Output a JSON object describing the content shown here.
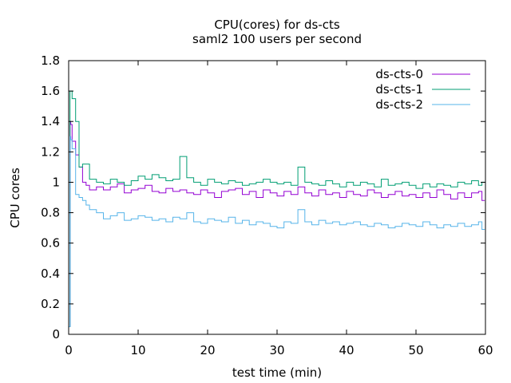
{
  "chart_data": {
    "type": "line",
    "title": "CPU(cores) for ds-cts",
    "subtitle": "saml2 100 users per second",
    "xlabel": "test time (min)",
    "ylabel": "CPU cores",
    "xlim": [
      0,
      60
    ],
    "ylim": [
      0,
      1.8
    ],
    "xticks": [
      0,
      10,
      20,
      30,
      40,
      50,
      60
    ],
    "yticks": [
      0,
      0.2,
      0.4,
      0.6,
      0.8,
      1,
      1.2,
      1.4,
      1.6,
      1.8
    ],
    "xtick_labels": [
      "0",
      "10",
      "20",
      "30",
      "40",
      "50",
      "60"
    ],
    "ytick_labels": [
      "0",
      "0.2",
      "0.4",
      "0.6",
      "0.8",
      "1",
      "1.2",
      "1.4",
      "1.6",
      "1.8"
    ],
    "grid": false,
    "legend_position": "top-right",
    "series": [
      {
        "name": "ds-cts-0",
        "color": "#9400d3",
        "x": [
          0,
          0.2,
          0.3,
          0.5,
          1,
          1.5,
          2,
          2.5,
          3,
          4,
          5,
          6,
          7,
          8,
          9,
          10,
          11,
          12,
          13,
          14,
          15,
          16,
          17,
          18,
          19,
          20,
          21,
          22,
          23,
          24,
          25,
          26,
          27,
          28,
          29,
          30,
          31,
          32,
          33,
          34,
          35,
          36,
          37,
          38,
          39,
          40,
          41,
          42,
          43,
          44,
          45,
          46,
          47,
          48,
          49,
          50,
          51,
          52,
          53,
          54,
          55,
          56,
          57,
          58,
          59,
          59.5
        ],
        "y": [
          0.05,
          1.4,
          1.38,
          1.27,
          1.18,
          1.1,
          1.0,
          0.98,
          0.95,
          0.97,
          0.95,
          0.97,
          0.99,
          0.93,
          0.95,
          0.96,
          0.98,
          0.94,
          0.93,
          0.96,
          0.94,
          0.95,
          0.93,
          0.92,
          0.95,
          0.93,
          0.9,
          0.94,
          0.95,
          0.96,
          0.92,
          0.94,
          0.9,
          0.95,
          0.93,
          0.91,
          0.94,
          0.92,
          0.97,
          0.93,
          0.91,
          0.95,
          0.92,
          0.93,
          0.9,
          0.94,
          0.92,
          0.91,
          0.95,
          0.93,
          0.9,
          0.92,
          0.94,
          0.91,
          0.92,
          0.9,
          0.93,
          0.9,
          0.95,
          0.92,
          0.89,
          0.93,
          0.9,
          0.93,
          0.94,
          0.88
        ]
      },
      {
        "name": "ds-cts-1",
        "color": "#009e73",
        "x": [
          0,
          0.2,
          0.3,
          0.5,
          1,
          1.5,
          2,
          2.5,
          3,
          4,
          5,
          6,
          7,
          8,
          9,
          10,
          11,
          12,
          13,
          14,
          15,
          16,
          17,
          18,
          19,
          20,
          21,
          22,
          23,
          24,
          25,
          26,
          27,
          28,
          29,
          30,
          31,
          32,
          33,
          34,
          35,
          36,
          37,
          38,
          39,
          40,
          41,
          42,
          43,
          44,
          45,
          46,
          47,
          48,
          49,
          50,
          51,
          52,
          53,
          54,
          55,
          56,
          57,
          58,
          59,
          59.5
        ],
        "y": [
          0.05,
          1.6,
          1.6,
          1.55,
          1.4,
          1.1,
          1.12,
          1.12,
          1.02,
          1.0,
          0.99,
          1.02,
          1.0,
          0.98,
          1.01,
          1.04,
          1.02,
          1.05,
          1.03,
          1.01,
          1.02,
          1.17,
          1.03,
          1.0,
          0.98,
          1.02,
          1.0,
          0.99,
          1.01,
          1.0,
          0.98,
          0.99,
          1.0,
          1.02,
          1.0,
          0.99,
          1.0,
          0.98,
          1.1,
          1.0,
          0.99,
          0.98,
          1.01,
          0.99,
          0.97,
          1.0,
          0.98,
          1.0,
          0.99,
          0.97,
          1.02,
          0.98,
          0.99,
          1.0,
          0.98,
          0.96,
          0.99,
          0.97,
          0.99,
          0.98,
          0.97,
          1.0,
          0.99,
          1.01,
          0.98,
          1.0
        ]
      },
      {
        "name": "ds-cts-2",
        "color": "#56b4e9",
        "x": [
          0,
          0.2,
          0.3,
          0.5,
          1,
          1.5,
          2,
          2.5,
          3,
          4,
          5,
          6,
          7,
          8,
          9,
          10,
          11,
          12,
          13,
          14,
          15,
          16,
          17,
          18,
          19,
          20,
          21,
          22,
          23,
          24,
          25,
          26,
          27,
          28,
          29,
          30,
          31,
          32,
          33,
          34,
          35,
          36,
          37,
          38,
          39,
          40,
          41,
          42,
          43,
          44,
          45,
          46,
          47,
          48,
          49,
          50,
          51,
          52,
          53,
          54,
          55,
          56,
          57,
          58,
          59,
          59.5
        ],
        "y": [
          0.05,
          1.3,
          1.28,
          1.22,
          0.92,
          0.9,
          0.88,
          0.85,
          0.82,
          0.8,
          0.76,
          0.78,
          0.8,
          0.75,
          0.76,
          0.78,
          0.77,
          0.75,
          0.76,
          0.74,
          0.77,
          0.76,
          0.8,
          0.74,
          0.73,
          0.76,
          0.75,
          0.74,
          0.77,
          0.73,
          0.75,
          0.72,
          0.74,
          0.73,
          0.71,
          0.7,
          0.74,
          0.73,
          0.82,
          0.74,
          0.72,
          0.75,
          0.73,
          0.74,
          0.72,
          0.73,
          0.74,
          0.72,
          0.71,
          0.73,
          0.72,
          0.7,
          0.71,
          0.73,
          0.72,
          0.71,
          0.74,
          0.72,
          0.7,
          0.72,
          0.71,
          0.73,
          0.71,
          0.72,
          0.74,
          0.69
        ]
      }
    ]
  }
}
